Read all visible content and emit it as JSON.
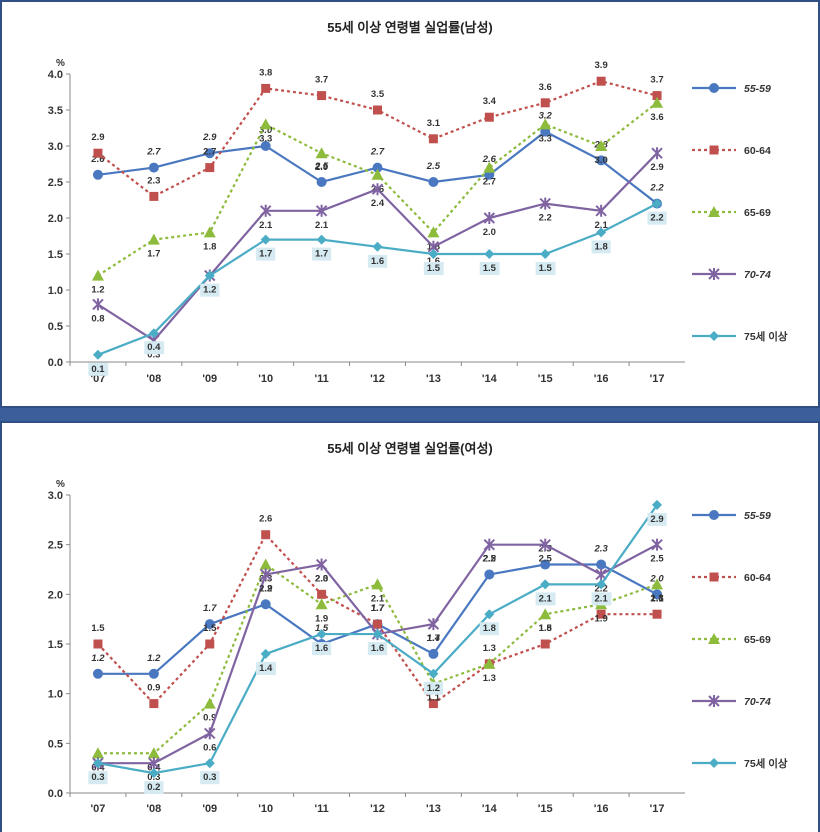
{
  "colors": {
    "55-59": "#4a78c0",
    "60-64": "#c0504d",
    "65-69": "#8dbb3c",
    "70-74": "#8064a2",
    "75+": "#4bacc6"
  },
  "chart_data": [
    {
      "type": "line",
      "title": "55세 이상 연령별 실업률(남성)",
      "unit": "%",
      "categories": [
        "'07",
        "'08",
        "'09",
        "'10",
        "'11",
        "'12",
        "'13",
        "'14",
        "'15",
        "'16",
        "'17"
      ],
      "ylim": [
        0,
        4.0
      ],
      "yticks": [
        "0.0",
        "0.5",
        "1.0",
        "1.5",
        "2.0",
        "2.5",
        "3.0",
        "3.5",
        "4.0"
      ],
      "grid": false,
      "legend_position": "right",
      "series": [
        {
          "name": "55-59",
          "values": [
            2.6,
            2.7,
            2.9,
            3.0,
            2.5,
            2.7,
            2.5,
            2.6,
            3.2,
            2.8,
            2.2
          ],
          "labels": [
            "2.6",
            "2.7",
            "2.9",
            "3.0",
            "2.5",
            "2.7",
            "2.5",
            "2.6",
            "3.2",
            "2.8",
            "2.2"
          ]
        },
        {
          "name": "60-64",
          "values": [
            2.9,
            2.3,
            2.7,
            3.8,
            3.7,
            3.5,
            3.1,
            3.4,
            3.6,
            3.9,
            3.7
          ],
          "labels": [
            "2.9",
            "2.3",
            "2.7",
            "3.8",
            "3.7",
            "3.5",
            "3.1",
            "3.4",
            "3.6",
            "3.9",
            "3.7"
          ]
        },
        {
          "name": "65-69",
          "values": [
            1.2,
            1.7,
            1.8,
            3.3,
            2.9,
            2.6,
            1.8,
            2.7,
            3.3,
            3.0,
            3.6
          ],
          "labels": [
            "1.2",
            "1.7",
            "1.8",
            "3.3",
            "2.9",
            "2.6",
            "1.8",
            "2.7",
            "3.3",
            "3.0",
            "3.6"
          ]
        },
        {
          "name": "70-74",
          "values": [
            0.8,
            0.3,
            1.2,
            2.1,
            2.1,
            2.4,
            1.6,
            2.0,
            2.2,
            2.1,
            2.9
          ],
          "labels": [
            "0.8",
            "0.3",
            "1.2",
            "2.1",
            "2.1",
            "2.4",
            "1.6",
            "2.0",
            "2.2",
            "2.1",
            "2.9"
          ]
        },
        {
          "name": "75세 이상",
          "values": [
            0.1,
            0.4,
            1.2,
            1.7,
            1.7,
            1.6,
            1.5,
            1.5,
            1.5,
            1.8,
            2.2
          ],
          "labels": [
            "0.1",
            "0.4",
            "1.2",
            "1.7",
            "1.7",
            "1.6",
            "1.5",
            "1.5",
            "1.5",
            "1.8",
            "2.2"
          ]
        }
      ]
    },
    {
      "type": "line",
      "title": "55세 이상 연령별 실업률(여성)",
      "unit": "%",
      "categories": [
        "'07",
        "'08",
        "'09",
        "'10",
        "'11",
        "'12",
        "'13",
        "'14",
        "'15",
        "'16",
        "'17"
      ],
      "ylim": [
        0,
        3.0
      ],
      "yticks": [
        "0.0",
        "0.5",
        "1.0",
        "1.5",
        "2.0",
        "2.5",
        "3.0"
      ],
      "grid": false,
      "legend_position": "right",
      "series": [
        {
          "name": "55-59",
          "values": [
            1.2,
            1.2,
            1.7,
            1.9,
            1.5,
            1.7,
            1.4,
            2.2,
            2.3,
            2.3,
            2.0
          ],
          "labels": [
            "1.2",
            "1.2",
            "1.7",
            "1.9",
            "1.5",
            "1.7",
            "1.4",
            "2.2",
            "2.3",
            "2.3",
            "2.0"
          ]
        },
        {
          "name": "60-64",
          "values": [
            1.5,
            0.9,
            1.5,
            2.6,
            2.0,
            1.7,
            0.9,
            1.3,
            1.5,
            1.8,
            1.8
          ],
          "labels": [
            "1.5",
            "0.9",
            "1.5",
            "2.6",
            "2.0",
            "1.7",
            "0.9",
            "1.3",
            "1.5",
            "1.8",
            "1.8"
          ]
        },
        {
          "name": "65-69",
          "values": [
            0.4,
            0.4,
            0.9,
            2.3,
            1.9,
            2.1,
            1.1,
            1.3,
            1.8,
            1.9,
            2.1
          ],
          "labels": [
            "0.4",
            "0.4",
            "0.9",
            "2.3",
            "1.9",
            "2.1",
            "1.1",
            "1.3",
            "1.8",
            "1.9",
            "2.1"
          ]
        },
        {
          "name": "70-74",
          "values": [
            0.3,
            0.3,
            0.6,
            2.2,
            2.3,
            1.6,
            1.7,
            2.5,
            2.5,
            2.2,
            2.5
          ],
          "labels": [
            "0.3",
            "0.3",
            "0.6",
            "2.2",
            "2.3",
            "1.6",
            "1.7",
            "2.5",
            "2.5",
            "2.2",
            "2.5"
          ]
        },
        {
          "name": "75세 이상",
          "values": [
            0.3,
            0.2,
            0.3,
            1.4,
            1.6,
            1.6,
            1.2,
            1.8,
            2.1,
            2.1,
            2.9
          ],
          "labels": [
            "0.3",
            "0.2",
            "0.3",
            "1.4",
            "1.6",
            "1.6",
            "1.2",
            "1.8",
            "2.1",
            "2.1",
            "2.9"
          ]
        }
      ]
    }
  ]
}
